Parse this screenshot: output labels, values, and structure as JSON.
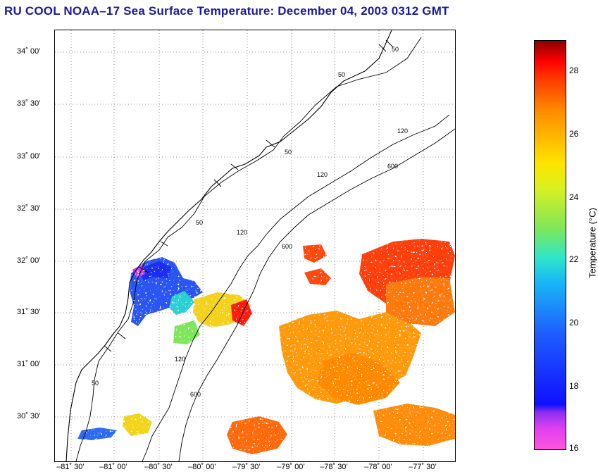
{
  "title": "RU COOL  NOAA–17  Sea Surface Temperature:  December 04, 2003 0312 GMT",
  "map": {
    "lat_labels": [
      "34˚ 00’",
      "33˚ 30’",
      "33˚ 00’",
      "32˚ 30’",
      "32˚ 00’",
      "31˚ 30’",
      "31˚ 00’",
      "30˚ 30’"
    ],
    "lon_labels": [
      "–81˚ 30’",
      "–81˚ 00’",
      "–80˚ 30’",
      "–80˚ 00’",
      "–79˚ 30’",
      "–79˚ 00’",
      "–78˚ 30’",
      "–78˚ 00’",
      "–77˚ 30’"
    ],
    "isobath_labels": [
      "50",
      "50",
      "50",
      "50",
      "120",
      "120",
      "120",
      "120",
      "600",
      "600",
      "600",
      "50"
    ]
  },
  "colorbar": {
    "label": "Temperature (°C)",
    "ticks": [
      "28",
      "26",
      "24",
      "22",
      "20",
      "18",
      "16"
    ]
  },
  "colors": {
    "title": "#1a1aa0"
  }
}
